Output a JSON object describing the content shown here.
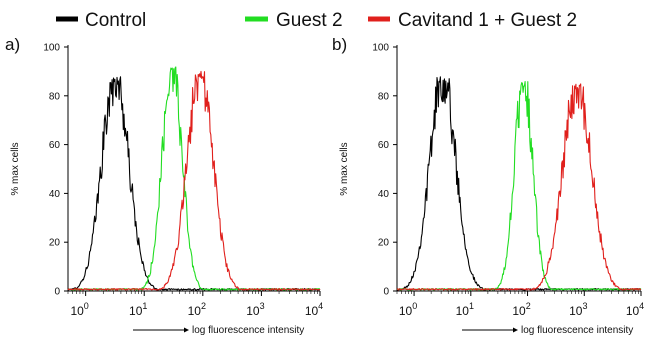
{
  "legend": {
    "items": [
      {
        "label": "Control",
        "color": "#000000"
      },
      {
        "label": "Guest 2",
        "color": "#22dd22"
      },
      {
        "label": "Cavitand 1 + Guest 2",
        "color": "#e0201c"
      }
    ]
  },
  "chart_data": [
    {
      "type": "line",
      "panel_label": "a)",
      "xlabel": "log fluorescence intensity",
      "ylabel": "% max cells",
      "x_scale": "log",
      "xlim": [
        0.5,
        10000
      ],
      "ylim": [
        0,
        100
      ],
      "x_ticks": [
        "10^0",
        "10^1",
        "10^2",
        "10^3",
        "10^4"
      ],
      "y_ticks": [
        0,
        20,
        40,
        60,
        80,
        100
      ],
      "grid": false,
      "series": [
        {
          "name": "Control",
          "color": "#000000",
          "shape": "lognormal",
          "peak_x": 3.2,
          "peak_y": 88,
          "sigma_decades": 0.23
        },
        {
          "name": "Guest 2",
          "color": "#22dd22",
          "shape": "lognormal",
          "peak_x": 30,
          "peak_y": 92,
          "sigma_decades": 0.17
        },
        {
          "name": "Cavitand 1 + Guest 2",
          "color": "#e0201c",
          "shape": "lognormal",
          "peak_x": 90,
          "peak_y": 90,
          "sigma_decades": 0.22
        }
      ]
    },
    {
      "type": "line",
      "panel_label": "b)",
      "xlabel": "log fluorescence intensity",
      "ylabel": "% max cells",
      "x_scale": "log",
      "xlim": [
        0.5,
        10000
      ],
      "ylim": [
        0,
        100
      ],
      "x_ticks": [
        "10^0",
        "10^1",
        "10^2",
        "10^3",
        "10^4"
      ],
      "y_ticks": [
        0,
        20,
        40,
        60,
        80,
        100
      ],
      "grid": false,
      "series": [
        {
          "name": "Control",
          "color": "#000000",
          "shape": "lognormal",
          "peak_x": 3.2,
          "peak_y": 88,
          "sigma_decades": 0.23
        },
        {
          "name": "Guest 2",
          "color": "#22dd22",
          "shape": "lognormal",
          "peak_x": 85,
          "peak_y": 86,
          "sigma_decades": 0.16
        },
        {
          "name": "Cavitand 1 + Guest 2",
          "color": "#e0201c",
          "shape": "lognormal",
          "peak_x": 750,
          "peak_y": 85,
          "sigma_decades": 0.25
        }
      ]
    }
  ]
}
